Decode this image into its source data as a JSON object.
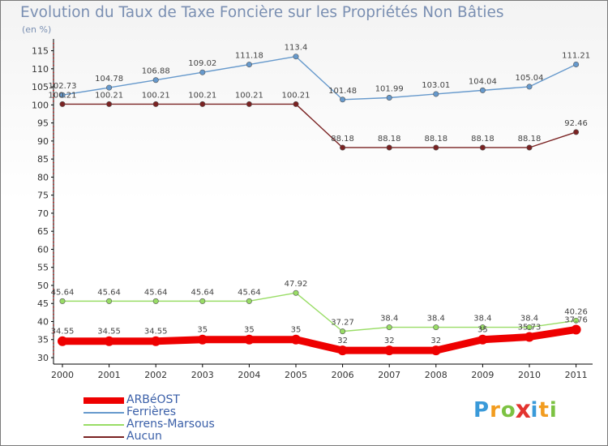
{
  "chart_data": {
    "type": "line",
    "title": "Evolution du Taux de Taxe Foncière sur les Propriétés Non Bâties",
    "ylabel": "(en %)",
    "xlabel": "",
    "categories": [
      "2000",
      "2001",
      "2002",
      "2003",
      "2004",
      "2005",
      "2006",
      "2007",
      "2008",
      "2009",
      "2010",
      "2011"
    ],
    "yticks": [
      30,
      35,
      40,
      45,
      50,
      55,
      60,
      65,
      70,
      75,
      80,
      85,
      90,
      95,
      100,
      105,
      110,
      115
    ],
    "ylim": [
      30,
      117
    ],
    "grid": false,
    "legend_position": "bottom-left",
    "series": [
      {
        "name": "ARBéOST",
        "color": "#ee0000",
        "values": [
          34.55,
          34.55,
          34.55,
          35,
          35,
          35,
          32,
          32,
          32,
          35,
          35.73,
          37.76
        ],
        "labels": [
          "34.55",
          "34.55",
          "34.55",
          "35",
          "35",
          "35",
          "32",
          "32",
          "32",
          "35",
          "35.73",
          "37.76"
        ]
      },
      {
        "name": "Ferrières",
        "color": "#6699cc",
        "values": [
          102.73,
          104.78,
          106.88,
          109.02,
          111.18,
          113.4,
          101.48,
          101.99,
          103.01,
          104.04,
          105.04,
          111.21
        ],
        "labels": [
          "102.73",
          "104.78",
          "106.88",
          "109.02",
          "111.18",
          "113.4",
          "101.48",
          "101.99",
          "103.01",
          "104.04",
          "105.04",
          "111.21"
        ]
      },
      {
        "name": "Arrens-Marsous",
        "color": "#99dd66",
        "values": [
          45.64,
          45.64,
          45.64,
          45.64,
          45.64,
          47.92,
          37.27,
          38.4,
          38.4,
          38.4,
          38.4,
          40.26
        ],
        "labels": [
          "45.64",
          "45.64",
          "45.64",
          "45.64",
          "45.64",
          "47.92",
          "37.27",
          "38.4",
          "38.4",
          "38.4",
          "38.4",
          "40.26"
        ]
      },
      {
        "name": "Aucun",
        "color": "#7a2222",
        "values": [
          100.21,
          100.21,
          100.21,
          100.21,
          100.21,
          100.21,
          88.18,
          88.18,
          88.18,
          88.18,
          88.18,
          92.46
        ],
        "labels": [
          "100.21",
          "100.21",
          "100.21",
          "100.21",
          "100.21",
          "100.21",
          "88.18",
          "88.18",
          "88.18",
          "88.18",
          "88.18",
          "92.46"
        ]
      }
    ]
  },
  "logo": {
    "text": "Proxiti",
    "letters": [
      "P",
      "r",
      "o",
      "x",
      "i",
      "t",
      "i"
    ],
    "colors": [
      "#3a9ad9",
      "#f29c1f",
      "#7cc242",
      "#e3342f",
      "#3a9ad9",
      "#f29c1f",
      "#7cc242"
    ]
  }
}
